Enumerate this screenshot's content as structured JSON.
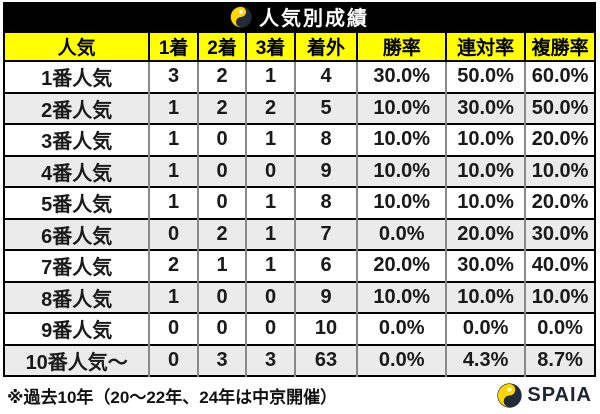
{
  "header": {
    "title": "人気別成績",
    "logo_icon": "spaia-swirl-icon"
  },
  "table": {
    "headers": [
      "人気",
      "1着",
      "2着",
      "3着",
      "着外",
      "勝率",
      "連対率",
      "複勝率"
    ],
    "rows": [
      [
        "1番人気",
        "3",
        "2",
        "1",
        "4",
        "30.0%",
        "50.0%",
        "60.0%"
      ],
      [
        "2番人気",
        "1",
        "2",
        "2",
        "5",
        "10.0%",
        "30.0%",
        "50.0%"
      ],
      [
        "3番人気",
        "1",
        "0",
        "1",
        "8",
        "10.0%",
        "10.0%",
        "20.0%"
      ],
      [
        "4番人気",
        "1",
        "0",
        "0",
        "9",
        "10.0%",
        "10.0%",
        "10.0%"
      ],
      [
        "5番人気",
        "1",
        "0",
        "1",
        "8",
        "10.0%",
        "10.0%",
        "20.0%"
      ],
      [
        "6番人気",
        "0",
        "2",
        "1",
        "7",
        "0.0%",
        "20.0%",
        "30.0%"
      ],
      [
        "7番人気",
        "2",
        "1",
        "1",
        "6",
        "20.0%",
        "30.0%",
        "40.0%"
      ],
      [
        "8番人気",
        "1",
        "0",
        "0",
        "9",
        "10.0%",
        "10.0%",
        "10.0%"
      ],
      [
        "9番人気",
        "0",
        "0",
        "0",
        "10",
        "0.0%",
        "0.0%",
        "0.0%"
      ],
      [
        "10番人気～",
        "0",
        "3",
        "3",
        "63",
        "0.0%",
        "4.3%",
        "8.7%"
      ]
    ]
  },
  "footer": {
    "note": "※過去10年（20～22年、24年は中京開催）",
    "brand": "SPAIA"
  },
  "colors": {
    "title_bar_bg": "#000000",
    "title_text": "#ffffff",
    "header_bg": "#ffff00",
    "row_alt_bg": "#ebebeb",
    "grid_vertical": "#888888",
    "grid_horizontal": "#000000",
    "brand_navy": "#1c2533",
    "logo_yellow": "#ffd400"
  },
  "chart_data": {
    "type": "table",
    "title": "人気別成績",
    "columns": [
      "人気",
      "1着",
      "2着",
      "3着",
      "着外",
      "勝率",
      "連対率",
      "複勝率"
    ],
    "rows": [
      {
        "popularity": "1番人気",
        "first": 3,
        "second": 2,
        "third": 1,
        "out": 4,
        "win_rate": "30.0%",
        "quinella_rate": "50.0%",
        "show_rate": "60.0%"
      },
      {
        "popularity": "2番人気",
        "first": 1,
        "second": 2,
        "third": 2,
        "out": 5,
        "win_rate": "10.0%",
        "quinella_rate": "30.0%",
        "show_rate": "50.0%"
      },
      {
        "popularity": "3番人気",
        "first": 1,
        "second": 0,
        "third": 1,
        "out": 8,
        "win_rate": "10.0%",
        "quinella_rate": "10.0%",
        "show_rate": "20.0%"
      },
      {
        "popularity": "4番人気",
        "first": 1,
        "second": 0,
        "third": 0,
        "out": 9,
        "win_rate": "10.0%",
        "quinella_rate": "10.0%",
        "show_rate": "10.0%"
      },
      {
        "popularity": "5番人気",
        "first": 1,
        "second": 0,
        "third": 1,
        "out": 8,
        "win_rate": "10.0%",
        "quinella_rate": "10.0%",
        "show_rate": "20.0%"
      },
      {
        "popularity": "6番人気",
        "first": 0,
        "second": 2,
        "third": 1,
        "out": 7,
        "win_rate": "0.0%",
        "quinella_rate": "20.0%",
        "show_rate": "30.0%"
      },
      {
        "popularity": "7番人気",
        "first": 2,
        "second": 1,
        "third": 1,
        "out": 6,
        "win_rate": "20.0%",
        "quinella_rate": "30.0%",
        "show_rate": "40.0%"
      },
      {
        "popularity": "8番人気",
        "first": 1,
        "second": 0,
        "third": 0,
        "out": 9,
        "win_rate": "10.0%",
        "quinella_rate": "10.0%",
        "show_rate": "10.0%"
      },
      {
        "popularity": "9番人気",
        "first": 0,
        "second": 0,
        "third": 0,
        "out": 10,
        "win_rate": "0.0%",
        "quinella_rate": "0.0%",
        "show_rate": "0.0%"
      },
      {
        "popularity": "10番人気～",
        "first": 0,
        "second": 3,
        "third": 3,
        "out": 63,
        "win_rate": "0.0%",
        "quinella_rate": "4.3%",
        "show_rate": "8.7%"
      }
    ],
    "footnote": "※過去10年（20～22年、24年は中京開催）",
    "source_brand": "SPAIA"
  }
}
